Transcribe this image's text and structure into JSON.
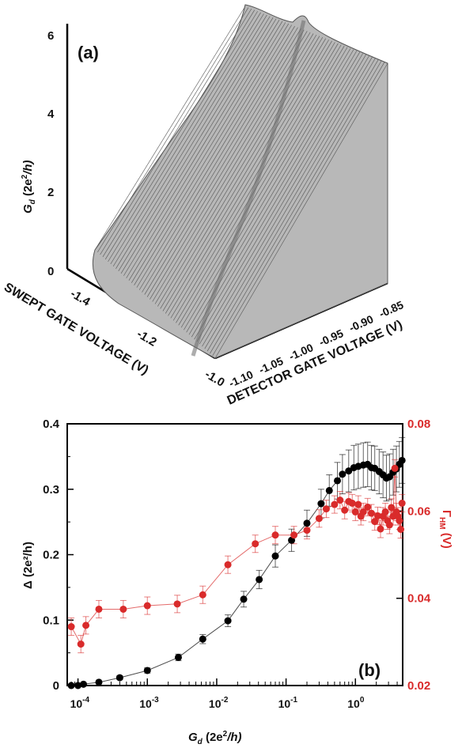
{
  "chart_data": [
    {
      "type": "surface",
      "panel_label": "(a)",
      "zlabel": "G",
      "zlabel_sub": "d",
      "zlabel_unit_prefix": " (2e",
      "zlabel_unit_sup": "2",
      "zlabel_unit_suffix": "/h)",
      "z_ticks": [
        "0",
        "2",
        "4",
        "6"
      ],
      "z_range": [
        0,
        6
      ],
      "xlabel": "SWEPT GATE VOLTAGE (V)",
      "x_ticks": [
        "-1.4",
        "-1.2",
        "-1.0"
      ],
      "ylabel": "DETECTOR GATE VOLTAGE (V)",
      "y_ticks": [
        "-1.10",
        "-1.05",
        "-1.00",
        "-0.95",
        "-0.90",
        "-0.85"
      ],
      "surface_color": "#b8b8b8",
      "mesh_color": "#555555"
    },
    {
      "type": "scatter",
      "panel_label": "(b)",
      "xlabel_main": "G",
      "xlabel_sub": "d",
      "xlabel_unit_prefix": " (2e",
      "xlabel_unit_sup": "2",
      "xlabel_unit_suffix": "/h)",
      "x_scale": "log",
      "x_ticks": [
        {
          "base": "10",
          "exp": "-4",
          "value": 0.0001
        },
        {
          "base": "10",
          "exp": "-3",
          "value": 0.001
        },
        {
          "base": "10",
          "exp": "-2",
          "value": 0.01
        },
        {
          "base": "10",
          "exp": "-1",
          "value": 0.1
        },
        {
          "base": "10",
          "exp": "0",
          "value": 1
        }
      ],
      "ylabel_left": "Δ (2e²/h)",
      "ylim_left": [
        0,
        0.4
      ],
      "y_ticks_left": [
        "0",
        "0.1",
        "0.2",
        "0.3",
        "0.4"
      ],
      "ylabel_right_main": "Γ",
      "ylabel_right_sub": "HM",
      "ylabel_right_unit": " (V)",
      "ylim_right": [
        0.02,
        0.08
      ],
      "y_ticks_right": [
        "0.02",
        "0.04",
        "0.06",
        "0.08"
      ],
      "series": [
        {
          "axis": "left",
          "color": "#000000",
          "x": [
            8e-05,
            0.0001,
            0.00012,
            0.0002,
            0.0004,
            0.001,
            0.0028,
            0.0063,
            0.0145,
            0.0245,
            0.041,
            0.07,
            0.12,
            0.2,
            0.32,
            0.42,
            0.55,
            0.65,
            0.8,
            0.95,
            1.1,
            1.3,
            1.5,
            1.7,
            1.9,
            2.2,
            2.5,
            2.8,
            3.1,
            3.5,
            3.9,
            4.3,
            4.7
          ],
          "y": [
            0.0,
            0.0,
            0.002,
            0.005,
            0.012,
            0.023,
            0.043,
            0.071,
            0.099,
            0.132,
            0.162,
            0.198,
            0.222,
            0.248,
            0.278,
            0.298,
            0.313,
            0.323,
            0.328,
            0.333,
            0.335,
            0.337,
            0.338,
            0.333,
            0.332,
            0.327,
            0.322,
            0.317,
            0.319,
            0.326,
            0.331,
            0.338,
            0.344
          ],
          "err": [
            0.0,
            0.0,
            0.0,
            0.0,
            0.003,
            0.004,
            0.005,
            0.007,
            0.009,
            0.012,
            0.014,
            0.017,
            0.017,
            0.02,
            0.022,
            0.024,
            0.028,
            0.03,
            0.032,
            0.034,
            0.034,
            0.034,
            0.034,
            0.034,
            0.034,
            0.034,
            0.035,
            0.035,
            0.035,
            0.035,
            0.035,
            0.035,
            0.035
          ]
        },
        {
          "axis": "right",
          "color": "#d92b2b",
          "x": [
            8e-05,
            0.00011,
            0.00013,
            0.0002,
            0.00045,
            0.001,
            0.0027,
            0.0063,
            0.0145,
            0.036,
            0.07,
            0.13,
            0.2,
            0.3,
            0.38,
            0.5,
            0.6,
            0.7,
            0.8,
            0.9,
            1.0,
            1.1,
            1.2,
            1.3,
            1.5,
            1.7,
            1.9,
            2.1,
            2.3,
            2.5,
            2.7,
            2.9,
            3.1,
            3.3,
            3.5,
            3.7,
            3.9,
            4.1,
            4.3,
            4.5,
            4.7
          ],
          "y": [
            0.0335,
            0.0295,
            0.0338,
            0.0375,
            0.0375,
            0.0383,
            0.0387,
            0.0408,
            0.0477,
            0.0525,
            0.0545,
            0.0545,
            0.0556,
            0.0583,
            0.0605,
            0.0615,
            0.0625,
            0.0602,
            0.0622,
            0.0618,
            0.0598,
            0.0615,
            0.0588,
            0.0598,
            0.0609,
            0.0595,
            0.0576,
            0.0589,
            0.0559,
            0.0588,
            0.0598,
            0.0578,
            0.0568,
            0.0608,
            0.0588,
            0.0698,
            0.0598,
            0.0588,
            0.0578,
            0.0558,
            0.0618
          ],
          "err": [
            0.002,
            0.002,
            0.002,
            0.002,
            0.002,
            0.002,
            0.002,
            0.002,
            0.002,
            0.002,
            0.002,
            0.002,
            0.002,
            0.002,
            0.002,
            0.002,
            0.002,
            0.002,
            0.002,
            0.002,
            0.002,
            0.002,
            0.002,
            0.002,
            0.002,
            0.002,
            0.002,
            0.002,
            0.002,
            0.002,
            0.002,
            0.002,
            0.002,
            0.002,
            0.002,
            0.002,
            0.002,
            0.002,
            0.002,
            0.002,
            0.002
          ]
        }
      ]
    }
  ]
}
